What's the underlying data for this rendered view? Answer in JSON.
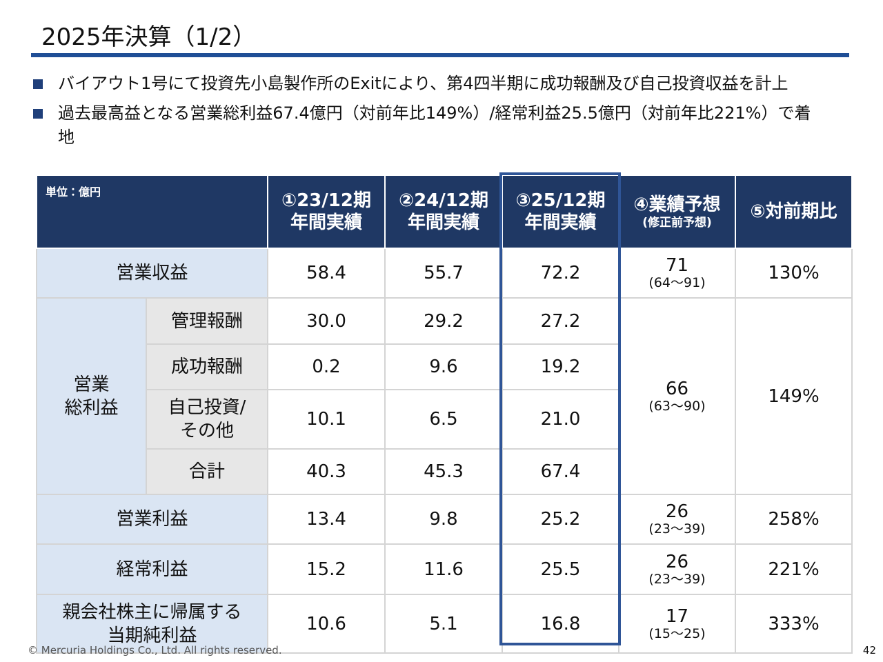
{
  "header": {
    "title": "2025年決算（1/2）"
  },
  "bullets": [
    "バイアウト1号にて投資先小島製作所のExitにより、第4四半期に成功報酬及び自己投資収益を計上",
    "過去最高益となる営業総利益67.4億円（対前年比149%）/経常利益25.5億円（対前年比221%）で着地"
  ],
  "table": {
    "unit": "単位：億円",
    "columns": [
      {
        "lines": [
          "①23/12期",
          "年間実績"
        ]
      },
      {
        "lines": [
          "②24/12期",
          "年間実績"
        ]
      },
      {
        "lines": [
          "③25/12期",
          "年間実績"
        ]
      },
      {
        "lines": [
          "④業績予想"
        ],
        "note": "(修正前予想)"
      },
      {
        "lines": [
          "⑤対前期比"
        ]
      }
    ],
    "rows": [
      {
        "label": [
          "営業収益"
        ],
        "values": [
          "58.4",
          "55.7",
          "72.2"
        ],
        "forecast": "71",
        "forecast_range": "(64～91)",
        "ratio": "130%"
      },
      {
        "group": [
          "営業",
          "総利益"
        ],
        "forecast": "66",
        "forecast_range": "(63～90)",
        "ratio": "149%",
        "items": [
          {
            "label": [
              "管理報酬"
            ],
            "values": [
              "30.0",
              "29.2",
              "27.2"
            ]
          },
          {
            "label": [
              "成功報酬"
            ],
            "values": [
              "0.2",
              "9.6",
              "19.2"
            ]
          },
          {
            "label": [
              "自己投資/",
              "その他"
            ],
            "values": [
              "10.1",
              "6.5",
              "21.0"
            ]
          },
          {
            "label": [
              "合計"
            ],
            "values": [
              "40.3",
              "45.3",
              "67.4"
            ]
          }
        ]
      },
      {
        "label": [
          "営業利益"
        ],
        "values": [
          "13.4",
          "9.8",
          "25.2"
        ],
        "forecast": "26",
        "forecast_range": "(23～39)",
        "ratio": "258%"
      },
      {
        "label": [
          "経常利益"
        ],
        "values": [
          "15.2",
          "11.6",
          "25.5"
        ],
        "forecast": "26",
        "forecast_range": "(23～39)",
        "ratio": "221%"
      },
      {
        "label": [
          "親会社株主に帰属する",
          "当期純利益"
        ],
        "values": [
          "10.6",
          "5.1",
          "16.8"
        ],
        "forecast": "17",
        "forecast_range": "(15～25)",
        "ratio": "333%"
      }
    ]
  },
  "footer": {
    "copyright": "© Mercuria Holdings Co., Ltd. All rights reserved.",
    "page": "42"
  }
}
